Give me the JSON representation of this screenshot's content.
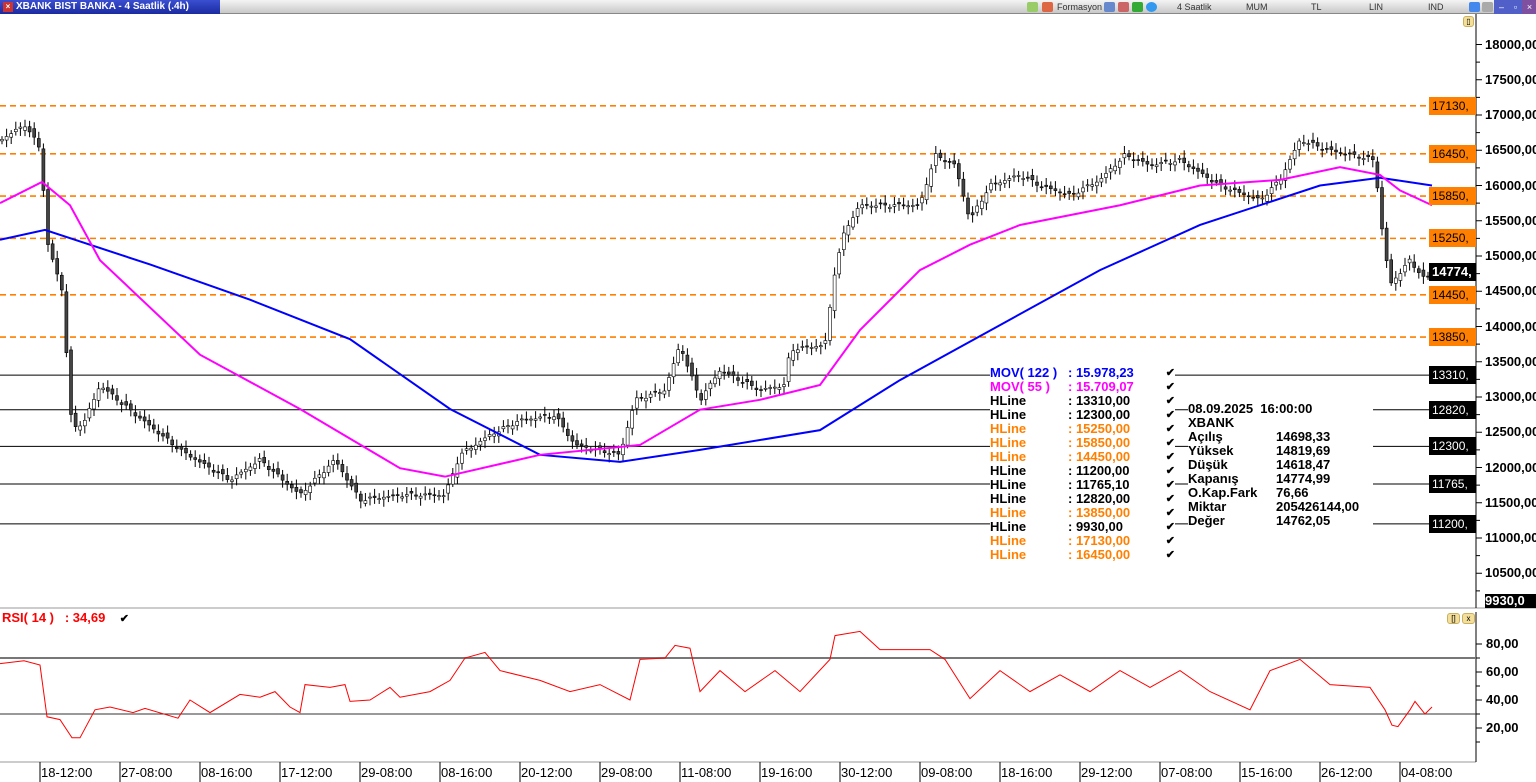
{
  "window": {
    "title": "XBANK BIST BANKA - 4 Saatlik (.4h)",
    "period": "4 Saatlik",
    "chart_type": "MUM",
    "currency": "TL",
    "scale": "LIN",
    "mode": "IND",
    "toolbar_text": "Formasyon"
  },
  "price_axis": {
    "labels": [
      "18000,00",
      "17500,00",
      "17000,00",
      "16500,00",
      "16000,00",
      "15500,00",
      "15000,00",
      "14500,00",
      "14000,00",
      "13500,00",
      "13000,00",
      "12500,00",
      "12000,00",
      "11500,00",
      "11000,00",
      "10500,00"
    ],
    "values": [
      18000,
      17500,
      17000,
      16500,
      16000,
      15500,
      15000,
      14500,
      14000,
      13500,
      13000,
      12500,
      12000,
      11500,
      11000,
      10500
    ],
    "last_value_tag": "14774,",
    "last_value": 14774.99,
    "cut_label": "9930,0"
  },
  "hlines": [
    {
      "value": 17130,
      "tag": "17130,",
      "color": "#ff8000",
      "style": "dashed"
    },
    {
      "value": 16450,
      "tag": "16450,",
      "color": "#ff8000",
      "style": "dashed"
    },
    {
      "value": 15850,
      "tag": "15850,",
      "color": "#ff8000",
      "style": "dashed"
    },
    {
      "value": 15250,
      "tag": "15250,",
      "color": "#ff8000",
      "style": "dashed"
    },
    {
      "value": 14450,
      "tag": "14450,",
      "color": "#ff8000",
      "style": "dashed"
    },
    {
      "value": 13850,
      "tag": "13850,",
      "color": "#ff8000",
      "style": "dashed"
    },
    {
      "value": 13310,
      "tag": "13310,",
      "color": "#000000",
      "style": "solid"
    },
    {
      "value": 12820,
      "tag": "12820,",
      "color": "#000000",
      "style": "solid"
    },
    {
      "value": 12300,
      "tag": "12300,",
      "color": "#000000",
      "style": "solid"
    },
    {
      "value": 11765.1,
      "tag": "11765,",
      "color": "#000000",
      "style": "solid"
    },
    {
      "value": 11200,
      "tag": "11200,",
      "color": "#000000",
      "style": "solid"
    }
  ],
  "legend": [
    {
      "name": "MOV( 122 )",
      "value": ": 15.978,23",
      "color": "#0000ff"
    },
    {
      "name": "MOV( 55 )",
      "value": ": 15.709,07",
      "color": "#ff00ff"
    },
    {
      "name": "HLine",
      "value": ": 13310,00",
      "color": "#000000"
    },
    {
      "name": "HLine",
      "value": ": 12300,00",
      "color": "#000000"
    },
    {
      "name": "HLine",
      "value": ": 15250,00",
      "color": "#ff8000"
    },
    {
      "name": "HLine",
      "value": ": 15850,00",
      "color": "#ff8000"
    },
    {
      "name": "HLine",
      "value": ": 14450,00",
      "color": "#ff8000"
    },
    {
      "name": "HLine",
      "value": ": 11200,00",
      "color": "#000000"
    },
    {
      "name": "HLine",
      "value": ": 11765,10",
      "color": "#000000"
    },
    {
      "name": "HLine",
      "value": ": 12820,00",
      "color": "#000000"
    },
    {
      "name": "HLine",
      "value": ": 13850,00",
      "color": "#ff8000"
    },
    {
      "name": "HLine",
      "value": ": 9930,00",
      "color": "#000000"
    },
    {
      "name": "HLine",
      "value": ": 17130,00",
      "color": "#ff8000"
    },
    {
      "name": "HLine",
      "value": ": 16450,00",
      "color": "#ff8000"
    }
  ],
  "check_glyph": "✔",
  "info": {
    "datetime": "08.09.2025  16:00:00",
    "symbol": "XBANK",
    "rows": [
      {
        "k": "Açılış",
        "v": "14698,33"
      },
      {
        "k": "Yüksek",
        "v": "14819,69"
      },
      {
        "k": "Düşük",
        "v": "14618,47"
      },
      {
        "k": "Kapanış",
        "v": "14774,99"
      },
      {
        "k": "O.Kap.Fark",
        "v": "76,66"
      },
      {
        "k": "Miktar",
        "v": "205426144,00"
      },
      {
        "k": "Değer",
        "v": "14762,05"
      }
    ]
  },
  "rsi": {
    "label": "RSI( 14 )",
    "value": ": 34,69",
    "axis": [
      "80,00",
      "60,00",
      "40,00",
      "20,00"
    ],
    "axis_values": [
      80,
      60,
      40,
      20
    ],
    "levels": [
      70,
      30
    ],
    "points": [
      [
        0,
        66
      ],
      [
        24,
        68
      ],
      [
        40,
        65
      ],
      [
        47,
        28
      ],
      [
        60,
        26
      ],
      [
        72,
        13
      ],
      [
        80,
        13
      ],
      [
        95,
        33
      ],
      [
        110,
        35
      ],
      [
        133,
        31
      ],
      [
        145,
        34
      ],
      [
        178,
        27
      ],
      [
        190,
        40
      ],
      [
        210,
        31
      ],
      [
        240,
        44
      ],
      [
        260,
        42
      ],
      [
        275,
        46
      ],
      [
        290,
        35
      ],
      [
        300,
        31
      ],
      [
        305,
        51
      ],
      [
        330,
        49
      ],
      [
        345,
        51
      ],
      [
        350,
        39
      ],
      [
        370,
        40
      ],
      [
        390,
        49
      ],
      [
        400,
        42
      ],
      [
        430,
        46
      ],
      [
        450,
        54
      ],
      [
        465,
        70
      ],
      [
        485,
        74
      ],
      [
        500,
        61
      ],
      [
        540,
        54
      ],
      [
        570,
        46
      ],
      [
        600,
        51
      ],
      [
        630,
        40
      ],
      [
        640,
        69
      ],
      [
        665,
        70
      ],
      [
        675,
        79
      ],
      [
        690,
        77
      ],
      [
        700,
        46
      ],
      [
        720,
        61
      ],
      [
        745,
        46
      ],
      [
        775,
        61
      ],
      [
        800,
        46
      ],
      [
        830,
        69
      ],
      [
        835,
        86
      ],
      [
        860,
        89
      ],
      [
        880,
        76
      ],
      [
        930,
        76
      ],
      [
        945,
        69
      ],
      [
        970,
        41
      ],
      [
        1000,
        61
      ],
      [
        1030,
        46
      ],
      [
        1060,
        58
      ],
      [
        1090,
        46
      ],
      [
        1120,
        61
      ],
      [
        1150,
        49
      ],
      [
        1180,
        61
      ],
      [
        1210,
        46
      ],
      [
        1250,
        33
      ],
      [
        1270,
        61
      ],
      [
        1300,
        69
      ],
      [
        1330,
        51
      ],
      [
        1370,
        49
      ],
      [
        1385,
        33
      ],
      [
        1392,
        22
      ],
      [
        1398,
        21
      ],
      [
        1410,
        33
      ],
      [
        1415,
        39
      ],
      [
        1425,
        30
      ],
      [
        1432,
        35
      ]
    ]
  },
  "time_axis": [
    "18-12:00",
    "27-08:00",
    "08-16:00",
    "17-12:00",
    "29-08:00",
    "08-16:00",
    "20-12:00",
    "29-08:00",
    "11-08:00",
    "19-16:00",
    "30-12:00",
    "09-08:00",
    "18-16:00",
    "29-12:00",
    "07-08:00",
    "15-16:00",
    "26-12:00",
    "04-08:00"
  ],
  "chart_data": {
    "type": "candlestick",
    "close_path": [
      [
        0,
        16645
      ],
      [
        25,
        16860
      ],
      [
        40,
        16530
      ],
      [
        48,
        15155
      ],
      [
        62,
        14520
      ],
      [
        72,
        12530
      ],
      [
        85,
        12670
      ],
      [
        100,
        13170
      ],
      [
        130,
        12815
      ],
      [
        180,
        12250
      ],
      [
        230,
        11820
      ],
      [
        260,
        12110
      ],
      [
        300,
        11610
      ],
      [
        335,
        12110
      ],
      [
        360,
        11540
      ],
      [
        400,
        11610
      ],
      [
        445,
        11610
      ],
      [
        460,
        12180
      ],
      [
        490,
        12460
      ],
      [
        520,
        12670
      ],
      [
        555,
        12740
      ],
      [
        575,
        12320
      ],
      [
        620,
        12180
      ],
      [
        635,
        12960
      ],
      [
        665,
        13100
      ],
      [
        680,
        13740
      ],
      [
        700,
        12960
      ],
      [
        720,
        13380
      ],
      [
        760,
        13100
      ],
      [
        785,
        13170
      ],
      [
        790,
        13670
      ],
      [
        825,
        13740
      ],
      [
        835,
        14800
      ],
      [
        845,
        15370
      ],
      [
        860,
        15720
      ],
      [
        880,
        15720
      ],
      [
        920,
        15720
      ],
      [
        935,
        16430
      ],
      [
        955,
        16290
      ],
      [
        970,
        15510
      ],
      [
        990,
        16000
      ],
      [
        1020,
        16150
      ],
      [
        1040,
        16000
      ],
      [
        1070,
        15860
      ],
      [
        1100,
        16080
      ],
      [
        1125,
        16430
      ],
      [
        1150,
        16290
      ],
      [
        1180,
        16360
      ],
      [
        1220,
        16000
      ],
      [
        1260,
        15790
      ],
      [
        1280,
        16080
      ],
      [
        1300,
        16645
      ],
      [
        1330,
        16500
      ],
      [
        1375,
        16360
      ],
      [
        1380,
        15580
      ],
      [
        1390,
        14590
      ],
      [
        1410,
        14940
      ],
      [
        1425,
        14660
      ],
      [
        1432,
        14774
      ]
    ],
    "mov122": [
      [
        0,
        15230
      ],
      [
        45,
        15370
      ],
      [
        150,
        14880
      ],
      [
        250,
        14380
      ],
      [
        350,
        13820
      ],
      [
        450,
        12830
      ],
      [
        540,
        12180
      ],
      [
        620,
        12080
      ],
      [
        700,
        12250
      ],
      [
        820,
        12530
      ],
      [
        900,
        13240
      ],
      [
        1000,
        14020
      ],
      [
        1100,
        14800
      ],
      [
        1200,
        15440
      ],
      [
        1320,
        16000
      ],
      [
        1380,
        16110
      ],
      [
        1432,
        16000
      ]
    ],
    "mov55": [
      [
        0,
        15750
      ],
      [
        42,
        16050
      ],
      [
        70,
        15720
      ],
      [
        100,
        14940
      ],
      [
        200,
        13600
      ],
      [
        300,
        12830
      ],
      [
        400,
        11990
      ],
      [
        445,
        11870
      ],
      [
        540,
        12180
      ],
      [
        640,
        12320
      ],
      [
        700,
        12820
      ],
      [
        760,
        12960
      ],
      [
        820,
        13170
      ],
      [
        860,
        13950
      ],
      [
        920,
        14800
      ],
      [
        970,
        15160
      ],
      [
        1020,
        15440
      ],
      [
        1120,
        15720
      ],
      [
        1200,
        16000
      ],
      [
        1280,
        16080
      ],
      [
        1340,
        16260
      ],
      [
        1380,
        16150
      ],
      [
        1400,
        15930
      ],
      [
        1432,
        15720
      ]
    ]
  }
}
